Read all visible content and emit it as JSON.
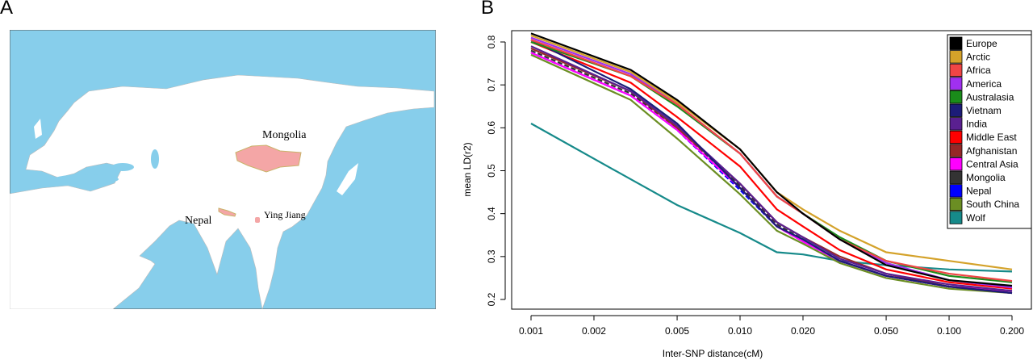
{
  "panels": {
    "a_label": "A",
    "b_label": "B"
  },
  "map": {
    "labels": {
      "mongolia": "Mongolia",
      "nepal": "Nepal",
      "ying_jiang": "Ying Jiang"
    },
    "colors": {
      "sea": "#87CEEB",
      "land": "#FFFFFF",
      "highlight": "#F4A6A6"
    }
  },
  "chart_data": {
    "type": "line",
    "title": "",
    "xlabel": "Inter-SNP distance(cM)",
    "ylabel": "mean LD(r2)",
    "xscale": "log",
    "xlim": [
      0.001,
      0.2
    ],
    "ylim": [
      0.2,
      0.8
    ],
    "xticks": [
      "0.001",
      "0.002",
      "0.005",
      "0.010",
      "0.020",
      "0.050",
      "0.100",
      "0.200"
    ],
    "yticks": [
      "0.2",
      "0.3",
      "0.4",
      "0.5",
      "0.6",
      "0.7",
      "0.8"
    ],
    "legend_position": "top-right",
    "x": [
      0.001,
      0.003,
      0.005,
      0.01,
      0.015,
      0.02,
      0.03,
      0.05,
      0.1,
      0.2
    ],
    "series": [
      {
        "name": "Europe",
        "color": "#000000",
        "values": [
          0.82,
          0.735,
          0.665,
          0.55,
          0.45,
          0.4,
          0.34,
          0.28,
          0.245,
          0.232
        ]
      },
      {
        "name": "Arctic",
        "color": "#D4A22A",
        "values": [
          0.815,
          0.73,
          0.66,
          0.55,
          0.45,
          0.41,
          0.36,
          0.31,
          0.29,
          0.27
        ]
      },
      {
        "name": "Africa",
        "color": "#F04545",
        "values": [
          0.805,
          0.72,
          0.655,
          0.54,
          0.44,
          0.4,
          0.34,
          0.29,
          0.26,
          0.243
        ]
      },
      {
        "name": "America",
        "color": "#A030F0",
        "values": [
          0.81,
          0.725,
          0.655,
          0.54,
          0.44,
          0.4,
          0.34,
          0.285,
          0.245,
          0.228
        ]
      },
      {
        "name": "Australasia",
        "color": "#1A8C1A",
        "values": [
          0.8,
          0.72,
          0.65,
          0.54,
          0.44,
          0.4,
          0.345,
          0.29,
          0.255,
          0.24
        ]
      },
      {
        "name": "Vietnam",
        "color": "#1C1C78",
        "values": [
          0.805,
          0.69,
          0.61,
          0.46,
          0.37,
          0.34,
          0.29,
          0.255,
          0.23,
          0.215
        ]
      },
      {
        "name": "India",
        "color": "#5A2090",
        "values": [
          0.79,
          0.685,
          0.605,
          0.47,
          0.38,
          0.345,
          0.295,
          0.26,
          0.235,
          0.22
        ]
      },
      {
        "name": "Middle East",
        "color": "#FF0000",
        "values": [
          0.8,
          0.705,
          0.625,
          0.51,
          0.41,
          0.37,
          0.315,
          0.27,
          0.24,
          0.225
        ]
      },
      {
        "name": "Afghanistan",
        "color": "#962828",
        "values": [
          0.785,
          0.685,
          0.6,
          0.47,
          0.38,
          0.345,
          0.3,
          0.26,
          0.23,
          0.215
        ]
      },
      {
        "name": "Central Asia",
        "color": "#FF00FF",
        "values": [
          0.775,
          0.675,
          0.595,
          0.46,
          0.37,
          0.335,
          0.29,
          0.255,
          0.23,
          0.22
        ]
      },
      {
        "name": "Mongolia",
        "color": "#333333",
        "dashed": true,
        "values": [
          0.78,
          0.68,
          0.6,
          0.465,
          0.375,
          0.34,
          0.29,
          0.255,
          0.23,
          0.22
        ]
      },
      {
        "name": "Nepal",
        "color": "#0000FF",
        "dashed": true,
        "values": [
          0.775,
          0.675,
          0.595,
          0.455,
          0.37,
          0.335,
          0.29,
          0.255,
          0.23,
          0.215
        ]
      },
      {
        "name": "South China",
        "color": "#6B8E23",
        "values": [
          0.77,
          0.665,
          0.575,
          0.445,
          0.36,
          0.33,
          0.285,
          0.25,
          0.225,
          0.215
        ]
      },
      {
        "name": "Wolf",
        "color": "#168A8A",
        "values": [
          0.61,
          0.48,
          0.42,
          0.355,
          0.31,
          0.305,
          0.29,
          0.28,
          0.27,
          0.265
        ]
      }
    ]
  }
}
